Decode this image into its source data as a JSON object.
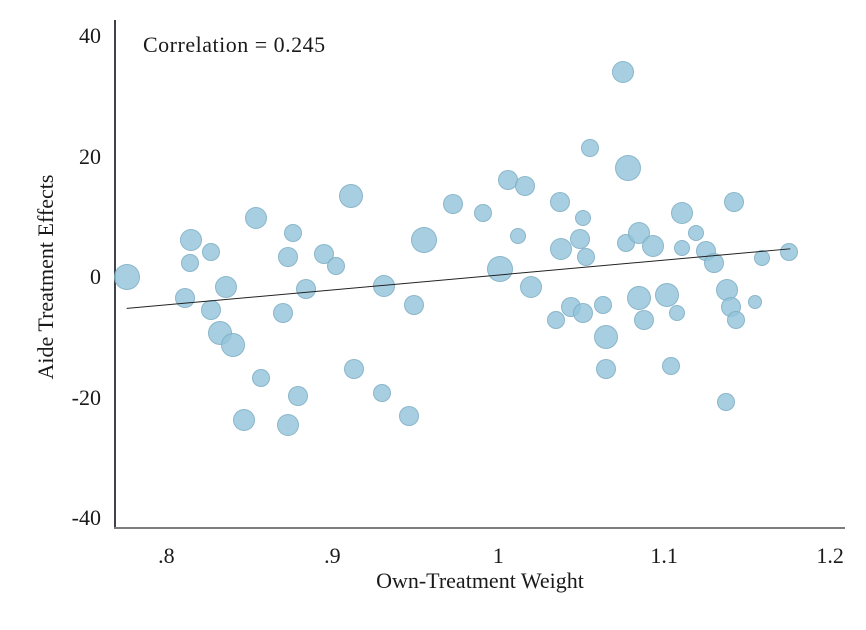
{
  "figure": {
    "background": "#ffffff",
    "axis_color_vertical": "#41414a",
    "axis_color_horizontal": "#7d7d7d"
  },
  "chart_data": {
    "type": "scatter",
    "annotation": "Correlation = 0.245",
    "xlabel": "Own-Treatment Weight",
    "ylabel": "Aide Treatment Effects",
    "xlim": [
      0.769,
      1.209
    ],
    "ylim": [
      -41.5,
      42.7
    ],
    "grid": false,
    "legend": null,
    "marker_color": "#94c4db",
    "x_ticks": [
      {
        "value": 0.8,
        "label": ".8"
      },
      {
        "value": 0.9,
        "label": ".9"
      },
      {
        "value": 1.0,
        "label": "1"
      },
      {
        "value": 1.1,
        "label": "1.1"
      },
      {
        "value": 1.2,
        "label": "1.2"
      }
    ],
    "y_ticks": [
      {
        "value": 40,
        "label": "40"
      },
      {
        "value": 20,
        "label": "20"
      },
      {
        "value": 0,
        "label": "0"
      },
      {
        "value": -20,
        "label": "-20"
      },
      {
        "value": -40,
        "label": "-40"
      }
    ],
    "fit_line": {
      "x1": 0.776,
      "y1": -5.2,
      "x2": 1.176,
      "y2": 4.7,
      "color": "#222222",
      "width": 1
    },
    "points": [
      {
        "x": 0.776,
        "y": 0.0,
        "r": 13
      },
      {
        "x": 0.814,
        "y": 2.3,
        "r": 9
      },
      {
        "x": 0.815,
        "y": 6.1,
        "r": 11
      },
      {
        "x": 0.827,
        "y": 4.1,
        "r": 9
      },
      {
        "x": 0.811,
        "y": -3.4,
        "r": 10
      },
      {
        "x": 0.827,
        "y": -5.4,
        "r": 10
      },
      {
        "x": 0.836,
        "y": -1.7,
        "r": 11
      },
      {
        "x": 0.832,
        "y": -9.2,
        "r": 12
      },
      {
        "x": 0.84,
        "y": -11.3,
        "r": 12
      },
      {
        "x": 0.854,
        "y": 9.8,
        "r": 11
      },
      {
        "x": 0.876,
        "y": 7.4,
        "r": 9
      },
      {
        "x": 0.873,
        "y": 3.3,
        "r": 10
      },
      {
        "x": 0.884,
        "y": -1.9,
        "r": 10
      },
      {
        "x": 0.87,
        "y": -5.9,
        "r": 10
      },
      {
        "x": 0.895,
        "y": 3.9,
        "r": 10
      },
      {
        "x": 0.902,
        "y": 1.9,
        "r": 9
      },
      {
        "x": 0.857,
        "y": -16.8,
        "r": 9
      },
      {
        "x": 0.879,
        "y": -19.7,
        "r": 10
      },
      {
        "x": 0.847,
        "y": -23.8,
        "r": 11
      },
      {
        "x": 0.873,
        "y": -24.6,
        "r": 11
      },
      {
        "x": 0.911,
        "y": 13.4,
        "r": 12
      },
      {
        "x": 0.913,
        "y": -15.2,
        "r": 10
      },
      {
        "x": 0.93,
        "y": -19.3,
        "r": 9
      },
      {
        "x": 0.946,
        "y": -23.0,
        "r": 10
      },
      {
        "x": 0.931,
        "y": -1.4,
        "r": 11
      },
      {
        "x": 0.949,
        "y": -4.7,
        "r": 10
      },
      {
        "x": 0.955,
        "y": 6.1,
        "r": 13
      },
      {
        "x": 0.973,
        "y": 12.2,
        "r": 10
      },
      {
        "x": 0.991,
        "y": 10.7,
        "r": 9
      },
      {
        "x": 1.006,
        "y": 16.1,
        "r": 10
      },
      {
        "x": 1.016,
        "y": 15.2,
        "r": 10
      },
      {
        "x": 1.055,
        "y": 21.4,
        "r": 9
      },
      {
        "x": 1.075,
        "y": 34.0,
        "r": 11
      },
      {
        "x": 1.078,
        "y": 18.2,
        "r": 13
      },
      {
        "x": 1.037,
        "y": 12.4,
        "r": 10
      },
      {
        "x": 1.051,
        "y": 9.9,
        "r": 8
      },
      {
        "x": 1.012,
        "y": 6.8,
        "r": 8
      },
      {
        "x": 1.001,
        "y": 1.4,
        "r": 13
      },
      {
        "x": 1.02,
        "y": -1.7,
        "r": 11
      },
      {
        "x": 1.038,
        "y": 4.6,
        "r": 11
      },
      {
        "x": 1.049,
        "y": 6.4,
        "r": 10
      },
      {
        "x": 1.053,
        "y": 3.3,
        "r": 9
      },
      {
        "x": 1.044,
        "y": -5.0,
        "r": 10
      },
      {
        "x": 1.051,
        "y": -6.0,
        "r": 10
      },
      {
        "x": 1.035,
        "y": -7.2,
        "r": 9
      },
      {
        "x": 1.063,
        "y": -4.7,
        "r": 9
      },
      {
        "x": 1.065,
        "y": -10.0,
        "r": 12
      },
      {
        "x": 1.065,
        "y": -15.3,
        "r": 10
      },
      {
        "x": 1.077,
        "y": 5.6,
        "r": 9
      },
      {
        "x": 1.085,
        "y": 7.4,
        "r": 11
      },
      {
        "x": 1.093,
        "y": 5.1,
        "r": 11
      },
      {
        "x": 1.111,
        "y": 10.7,
        "r": 11
      },
      {
        "x": 1.142,
        "y": 12.4,
        "r": 10
      },
      {
        "x": 1.111,
        "y": 4.8,
        "r": 8
      },
      {
        "x": 1.119,
        "y": 7.3,
        "r": 8
      },
      {
        "x": 1.125,
        "y": 4.4,
        "r": 10
      },
      {
        "x": 1.13,
        "y": 2.4,
        "r": 10
      },
      {
        "x": 1.085,
        "y": -3.5,
        "r": 12
      },
      {
        "x": 1.088,
        "y": -7.2,
        "r": 10
      },
      {
        "x": 1.102,
        "y": -3.0,
        "r": 12
      },
      {
        "x": 1.108,
        "y": -5.9,
        "r": 8
      },
      {
        "x": 1.138,
        "y": -2.2,
        "r": 11
      },
      {
        "x": 1.14,
        "y": -4.9,
        "r": 10
      },
      {
        "x": 1.143,
        "y": -7.2,
        "r": 9
      },
      {
        "x": 1.155,
        "y": -4.2,
        "r": 7
      },
      {
        "x": 1.104,
        "y": -14.7,
        "r": 9
      },
      {
        "x": 1.137,
        "y": -20.8,
        "r": 9
      },
      {
        "x": 1.159,
        "y": 3.1,
        "r": 8
      },
      {
        "x": 1.175,
        "y": 4.1,
        "r": 9
      }
    ]
  }
}
